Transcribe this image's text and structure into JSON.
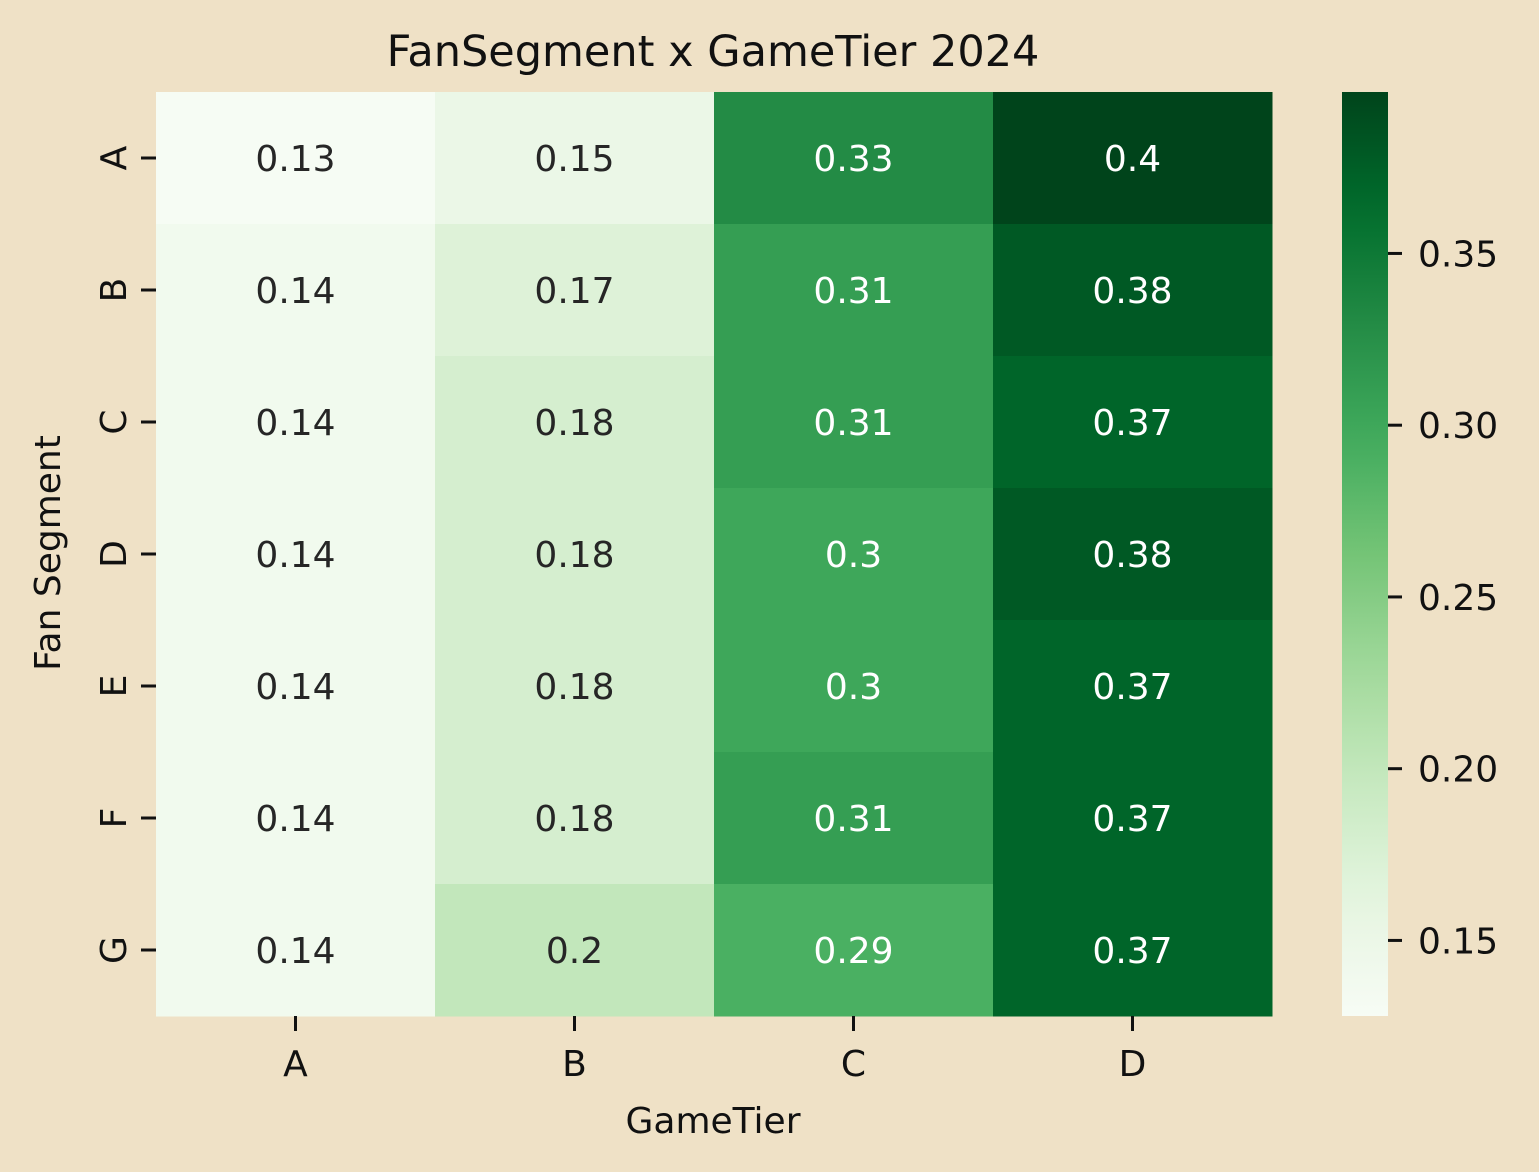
{
  "chart_data": {
    "type": "heatmap",
    "title": "FanSegment x GameTier 2024",
    "xlabel": "GameTier",
    "ylabel": "Fan Segment",
    "x_categories": [
      "A",
      "B",
      "C",
      "D"
    ],
    "y_categories": [
      "A",
      "B",
      "C",
      "D",
      "E",
      "F",
      "G"
    ],
    "values": [
      [
        0.13,
        0.15,
        0.33,
        0.4
      ],
      [
        0.14,
        0.17,
        0.31,
        0.38
      ],
      [
        0.14,
        0.18,
        0.31,
        0.37
      ],
      [
        0.14,
        0.18,
        0.3,
        0.38
      ],
      [
        0.14,
        0.18,
        0.3,
        0.37
      ],
      [
        0.14,
        0.18,
        0.31,
        0.37
      ],
      [
        0.14,
        0.2,
        0.29,
        0.37
      ]
    ],
    "colormap": "Greens",
    "colorbar": {
      "range": [
        0.128,
        0.397
      ],
      "ticks": [
        0.15,
        0.2,
        0.25,
        0.3,
        0.35
      ],
      "tick_labels": [
        "0.15",
        "0.20",
        "0.25",
        "0.30",
        "0.35"
      ]
    },
    "colors": {
      "background": "#efe1c6",
      "text_dark": "#262626",
      "text_light": "#ffffff"
    }
  }
}
